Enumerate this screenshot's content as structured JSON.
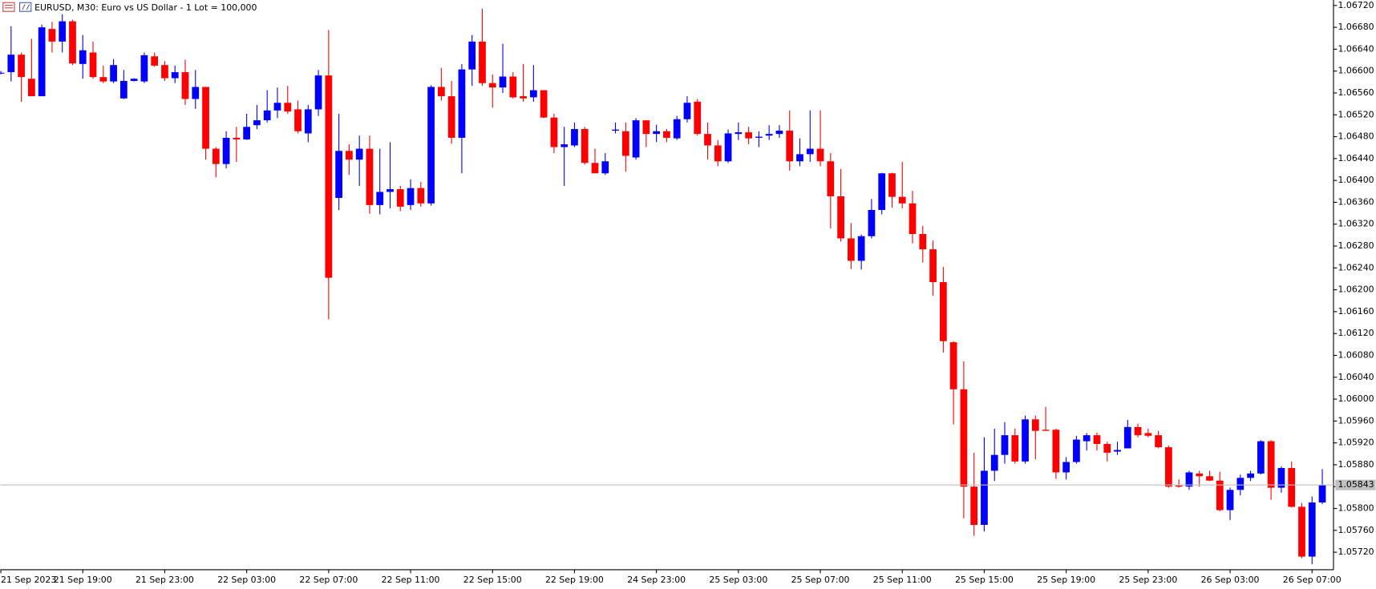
{
  "chart_data": {
    "type": "candlestick",
    "title": "EURUSD, M30:  Euro vs US Dollar - 1 Lot = 100,000",
    "categories": [
      "21 Sep 2023",
      null,
      null,
      null,
      null,
      null,
      null,
      null,
      "21 Sep 19:00",
      null,
      null,
      null,
      null,
      null,
      null,
      null,
      "21 Sep 23:00",
      null,
      null,
      null,
      null,
      null,
      null,
      null,
      "22 Sep 03:00",
      null,
      null,
      null,
      null,
      null,
      null,
      null,
      "22 Sep 07:00",
      null,
      null,
      null,
      null,
      null,
      null,
      null,
      "22 Sep 11:00",
      null,
      null,
      null,
      null,
      null,
      null,
      null,
      "22 Sep 15:00",
      null,
      null,
      null,
      null,
      null,
      null,
      null,
      "22 Sep 19:00",
      null,
      null,
      null,
      null,
      null,
      null,
      null,
      "24 Sep 23:00",
      null,
      null,
      null,
      null,
      null,
      null,
      null,
      "25 Sep 03:00",
      null,
      null,
      null,
      null,
      null,
      null,
      null,
      "25 Sep 07:00",
      null,
      null,
      null,
      null,
      null,
      null,
      null,
      "25 Sep 11:00",
      null,
      null,
      null,
      null,
      null,
      null,
      null,
      "25 Sep 15:00",
      null,
      null,
      null,
      null,
      null,
      null,
      null,
      "25 Sep 19:00",
      null,
      null,
      null,
      null,
      null,
      null,
      null,
      "25 Sep 23:00",
      null,
      null,
      null,
      null,
      null,
      null,
      null,
      "26 Sep 03:00",
      null,
      null,
      null,
      null,
      null,
      null,
      null,
      "26 Sep 07:00",
      null
    ],
    "open": [
      1.06597,
      1.06598,
      1.0663,
      1.06586,
      1.06554,
      1.06677,
      1.06654,
      1.06691,
      1.06613,
      1.06634,
      1.06589,
      1.06581,
      1.0655,
      1.06582,
      1.06581,
      1.06627,
      1.06611,
      1.06587,
      1.06598,
      1.06549,
      1.06571,
      1.06458,
      1.0643,
      1.06478,
      1.06475,
      1.06501,
      1.0651,
      1.06528,
      1.06542,
      1.0653,
      1.06486,
      1.0653,
      1.06592,
      1.06368,
      1.06454,
      1.06438,
      1.06458,
      1.06355,
      1.06379,
      1.06384,
      1.06355,
      1.06386,
      1.06358,
      1.06571,
      1.06554,
      1.06478,
      1.06603,
      1.06654,
      1.06578,
      1.0657,
      1.0659,
      1.06554,
      1.06552,
      1.06565,
      1.06515,
      1.06461,
      1.06464,
      1.06494,
      1.06432,
      1.06413,
      1.06491,
      1.0649,
      1.06442,
      1.0651,
      1.06485,
      1.0649,
      1.06477,
      1.06512,
      1.06544,
      1.06485,
      1.06464,
      1.06435,
      1.06485,
      1.06488,
      1.06478,
      1.06482,
      1.06485,
      1.06491,
      1.06435,
      1.06448,
      1.06458,
      1.06435,
      1.06371,
      1.06294,
      1.06253,
      1.06298,
      1.06346,
      1.06413,
      1.0637,
      1.06358,
      1.06302,
      1.06274,
      1.06214,
      1.06104,
      1.06018,
      1.0584,
      1.0577,
      1.05869,
      1.05898,
      1.05934,
      1.05886,
      1.05963,
      1.05944,
      1.05944,
      1.05866,
      1.05885,
      1.05923,
      1.05934,
      1.05918,
      1.05904,
      1.0591,
      1.05949,
      1.05938,
      1.05934,
      1.05912,
      1.05842,
      1.0584,
      1.05864,
      1.05859,
      1.05851,
      1.05797,
      1.05834,
      1.05856,
      1.05864,
      1.05923,
      1.05838,
      1.05874,
      1.05803,
      1.05712,
      1.05811
    ],
    "high": [
      1.066,
      1.06682,
      1.06634,
      1.06659,
      1.06685,
      1.0669,
      1.06704,
      1.06694,
      1.06666,
      1.06654,
      1.0661,
      1.06622,
      1.06602,
      1.06587,
      1.06634,
      1.06634,
      1.06618,
      1.0661,
      1.06621,
      1.06602,
      1.06571,
      1.06461,
      1.0649,
      1.06498,
      1.06522,
      1.06538,
      1.06565,
      1.0657,
      1.06573,
      1.06546,
      1.06538,
      1.06602,
      1.06675,
      1.06522,
      1.06466,
      1.06482,
      1.06482,
      1.06458,
      1.0647,
      1.0639,
      1.06402,
      1.06397,
      1.06574,
      1.06606,
      1.06582,
      1.06613,
      1.06666,
      1.06714,
      1.06594,
      1.0665,
      1.06598,
      1.06613,
      1.06611,
      1.06565,
      1.06522,
      1.06498,
      1.06506,
      1.06498,
      1.06458,
      1.0645,
      1.06506,
      1.06506,
      1.06514,
      1.0651,
      1.06502,
      1.06494,
      1.06518,
      1.06554,
      1.06549,
      1.06506,
      1.06474,
      1.06493,
      1.06506,
      1.06498,
      1.0649,
      1.06501,
      1.06501,
      1.06528,
      1.06477,
      1.06528,
      1.06528,
      1.0645,
      1.06421,
      1.06322,
      1.06301,
      1.06366,
      1.06414,
      1.06414,
      1.06434,
      1.06381,
      1.06317,
      1.0629,
      1.06242,
      1.06106,
      1.06069,
      1.05902,
      1.0593,
      1.05946,
      1.05958,
      1.05946,
      1.0597,
      1.0597,
      1.05986,
      1.05946,
      1.05894,
      1.05933,
      1.05938,
      1.05939,
      1.05922,
      1.05922,
      1.05962,
      1.05955,
      1.05946,
      1.05942,
      1.05915,
      1.05853,
      1.05869,
      1.05869,
      1.05869,
      1.05867,
      1.05838,
      1.05862,
      1.05869,
      1.05925,
      1.05925,
      1.05877,
      1.05886,
      1.0581,
      1.05822,
      1.05872
    ],
    "low": [
      1.06594,
      1.06581,
      1.06544,
      1.06554,
      1.06554,
      1.06634,
      1.06634,
      1.06611,
      1.06586,
      1.06586,
      1.06578,
      1.06578,
      1.06549,
      1.06581,
      1.06578,
      1.06608,
      1.06582,
      1.06578,
      1.06538,
      1.06531,
      1.06438,
      1.06406,
      1.06422,
      1.06434,
      1.06474,
      1.06494,
      1.06506,
      1.06514,
      1.06522,
      1.06486,
      1.0647,
      1.06518,
      1.06146,
      1.06346,
      1.0641,
      1.0639,
      1.06339,
      1.06338,
      1.06349,
      1.06344,
      1.06346,
      1.06352,
      1.06354,
      1.06546,
      1.06467,
      1.06413,
      1.06573,
      1.06573,
      1.06533,
      1.0656,
      1.0655,
      1.06544,
      1.06544,
      1.06514,
      1.0645,
      1.0639,
      1.06461,
      1.06429,
      1.06413,
      1.0641,
      1.06486,
      1.06416,
      1.06438,
      1.06461,
      1.0647,
      1.0647,
      1.06474,
      1.06506,
      1.06482,
      1.06438,
      1.06426,
      1.06432,
      1.06474,
      1.06466,
      1.06461,
      1.06474,
      1.06478,
      1.06418,
      1.06426,
      1.06434,
      1.06426,
      1.06312,
      1.06288,
      1.06238,
      1.06237,
      1.06294,
      1.06338,
      1.0635,
      1.06349,
      1.06285,
      1.0625,
      1.06189,
      1.06085,
      1.05954,
      1.05782,
      1.0575,
      1.05758,
      1.0585,
      1.05882,
      1.05882,
      1.05882,
      1.0589,
      1.05942,
      1.05854,
      1.05853,
      1.05882,
      1.05906,
      1.05906,
      1.05886,
      1.05898,
      1.0591,
      1.0593,
      1.0593,
      1.0591,
      1.05838,
      1.05838,
      1.05834,
      1.0584,
      1.0585,
      1.05795,
      1.05779,
      1.05824,
      1.0585,
      1.05862,
      1.05816,
      1.05829,
      1.05802,
      1.05709,
      1.05698,
      1.05808
    ],
    "close": [
      1.06597,
      1.0663,
      1.06589,
      1.06554,
      1.0668,
      1.06654,
      1.06691,
      1.06614,
      1.06638,
      1.06589,
      1.06581,
      1.06611,
      1.06582,
      1.06586,
      1.06629,
      1.0661,
      1.06587,
      1.06598,
      1.06549,
      1.06571,
      1.06458,
      1.0643,
      1.06478,
      1.06475,
      1.06498,
      1.0651,
      1.06528,
      1.06542,
      1.06526,
      1.0649,
      1.0653,
      1.06592,
      1.06222,
      1.06454,
      1.06438,
      1.06458,
      1.06355,
      1.06379,
      1.06384,
      1.06352,
      1.06386,
      1.06358,
      1.06571,
      1.06554,
      1.06478,
      1.06603,
      1.06654,
      1.06578,
      1.0657,
      1.0659,
      1.06552,
      1.0655,
      1.06565,
      1.06515,
      1.06461,
      1.06466,
      1.06494,
      1.06432,
      1.06413,
      1.06435,
      1.06493,
      1.06445,
      1.0651,
      1.06485,
      1.0649,
      1.06478,
      1.06512,
      1.06542,
      1.06485,
      1.06464,
      1.06435,
      1.06486,
      1.06488,
      1.06477,
      1.0648,
      1.06485,
      1.06491,
      1.06435,
      1.06448,
      1.06458,
      1.06435,
      1.06371,
      1.06294,
      1.06253,
      1.06298,
      1.06346,
      1.06413,
      1.0637,
      1.06358,
      1.06302,
      1.06274,
      1.06214,
      1.06106,
      1.06018,
      1.0584,
      1.0577,
      1.05869,
      1.05898,
      1.05934,
      1.05886,
      1.05963,
      1.05942,
      1.05942,
      1.05866,
      1.05885,
      1.05926,
      1.05934,
      1.05918,
      1.05902,
      1.05907,
      1.05949,
      1.05934,
      1.05933,
      1.05912,
      1.0584,
      1.0584,
      1.05866,
      1.05859,
      1.05851,
      1.05797,
      1.05834,
      1.05856,
      1.05864,
      1.05923,
      1.05838,
      1.05874,
      1.05803,
      1.05712,
      1.05811,
      1.05843
    ],
    "up_color": "#0000ff",
    "down_color": "#ff0000",
    "ylim": [
      1.05688,
      1.0673
    ],
    "yticks": [
      {
        "value": 1.0572,
        "label": "1.05720"
      },
      {
        "value": 1.0576,
        "label": "1.05760"
      },
      {
        "value": 1.058,
        "label": "1.05800"
      },
      {
        "value": 1.0584,
        "label": "1.05840"
      },
      {
        "value": 1.0588,
        "label": "1.05880"
      },
      {
        "value": 1.0592,
        "label": "1.05920"
      },
      {
        "value": 1.0596,
        "label": "1.05960"
      },
      {
        "value": 1.06,
        "label": "1.06000"
      },
      {
        "value": 1.0604,
        "label": "1.06040"
      },
      {
        "value": 1.0608,
        "label": "1.06080"
      },
      {
        "value": 1.0612,
        "label": "1.06120"
      },
      {
        "value": 1.0616,
        "label": "1.06160"
      },
      {
        "value": 1.062,
        "label": "1.06200"
      },
      {
        "value": 1.0624,
        "label": "1.06240"
      },
      {
        "value": 1.0628,
        "label": "1.06280"
      },
      {
        "value": 1.0632,
        "label": "1.06320"
      },
      {
        "value": 1.0636,
        "label": "1.06360"
      },
      {
        "value": 1.064,
        "label": "1.06400"
      },
      {
        "value": 1.0644,
        "label": "1.06440"
      },
      {
        "value": 1.0648,
        "label": "1.06480"
      },
      {
        "value": 1.0652,
        "label": "1.06520"
      },
      {
        "value": 1.0656,
        "label": "1.06560"
      },
      {
        "value": 1.066,
        "label": "1.06600"
      },
      {
        "value": 1.0664,
        "label": "1.06640"
      },
      {
        "value": 1.0668,
        "label": "1.06680"
      },
      {
        "value": 1.0672,
        "label": "1.06720"
      }
    ],
    "current_price": 1.05843,
    "grid": false
  }
}
